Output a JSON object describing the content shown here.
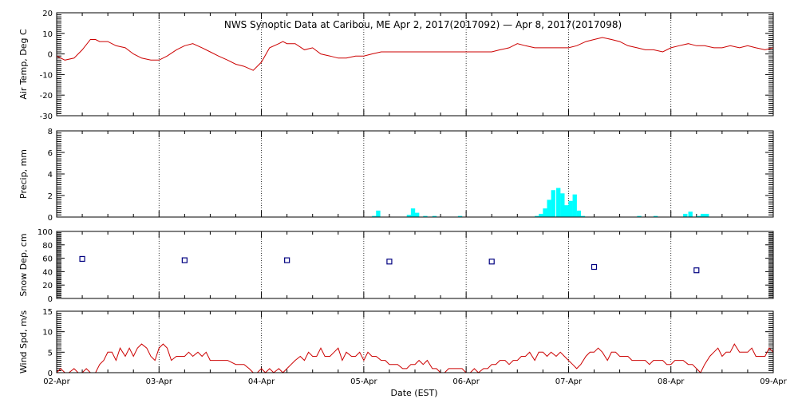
{
  "title": "NWS Synoptic Data at Caribou, ME   Apr  2, 2017(2017092) — Apr  8, 2017(2017098)",
  "xlabel": "Date (EST)",
  "x_ticks": [
    "02-Apr",
    "03-Apr",
    "04-Apr",
    "05-Apr",
    "06-Apr",
    "07-Apr",
    "08-Apr",
    "09-Apr"
  ],
  "x_range_days": [
    0,
    7
  ],
  "colors": {
    "temp": "#cc0000",
    "precip": "#00ffff",
    "snow": "#000080",
    "wind": "#cc0000",
    "grid": "#000000"
  },
  "chart_data": [
    {
      "type": "line",
      "ylabel": "Air Temp, Deg C",
      "ylim": [
        -30,
        20
      ],
      "y_ticks": [
        -30,
        -20,
        -10,
        0,
        10,
        20
      ],
      "grid": "vertical-dotted",
      "x_unit": "days since 02-Apr",
      "x": [
        0,
        0.08,
        0.17,
        0.25,
        0.33,
        0.38,
        0.42,
        0.5,
        0.58,
        0.67,
        0.75,
        0.83,
        0.92,
        1.0,
        1.08,
        1.17,
        1.25,
        1.33,
        1.42,
        1.5,
        1.58,
        1.67,
        1.75,
        1.83,
        1.92,
        2.0,
        2.08,
        2.17,
        2.21,
        2.25,
        2.33,
        2.42,
        2.5,
        2.58,
        2.67,
        2.75,
        2.83,
        2.92,
        3.0,
        3.08,
        3.17,
        3.25,
        3.33,
        3.5,
        3.75,
        4.0,
        4.25,
        4.33,
        4.42,
        4.5,
        4.58,
        4.67,
        4.75,
        4.83,
        4.92,
        5.0,
        5.08,
        5.17,
        5.25,
        5.33,
        5.42,
        5.5,
        5.58,
        5.67,
        5.75,
        5.83,
        5.92,
        6.0,
        6.08,
        6.17,
        6.25,
        6.33,
        6.42,
        6.5,
        6.58,
        6.67,
        6.75,
        6.83,
        6.92,
        7.0
      ],
      "y": [
        -1,
        -3,
        -2,
        2,
        7,
        7,
        6,
        6,
        4,
        3,
        0,
        -2,
        -3,
        -3,
        -1,
        2,
        4,
        5,
        3,
        1,
        -1,
        -3,
        -5,
        -6,
        -8,
        -4,
        3,
        5,
        6,
        5,
        5,
        2,
        3,
        0,
        -1,
        -2,
        -2,
        -1,
        -1,
        0,
        1,
        1,
        1,
        1,
        1,
        1,
        1,
        2,
        3,
        5,
        4,
        3,
        3,
        3,
        3,
        3,
        4,
        6,
        7,
        8,
        7,
        6,
        4,
        3,
        2,
        2,
        1,
        3,
        4,
        5,
        4,
        4,
        3,
        3,
        4,
        3,
        4,
        3,
        2,
        3
      ]
    },
    {
      "type": "bar",
      "ylabel": "Precip, mm",
      "ylim": [
        0,
        8
      ],
      "y_ticks": [
        0,
        2,
        4,
        6,
        8
      ],
      "grid": "vertical-dotted",
      "x_unit": "days since 02-Apr",
      "x": [
        3.08,
        3.12,
        3.42,
        3.46,
        3.5,
        3.58,
        3.67,
        3.92,
        4.67,
        4.71,
        4.75,
        4.79,
        4.83,
        4.88,
        4.92,
        4.96,
        5.0,
        5.04,
        5.08,
        5.12,
        5.67,
        5.83,
        6.12,
        6.17,
        6.25,
        6.29,
        6.33
      ],
      "values": [
        0.1,
        0.6,
        0.2,
        0.8,
        0.4,
        0.1,
        0.1,
        0.1,
        0.1,
        0.3,
        0.8,
        1.6,
        2.5,
        2.7,
        2.2,
        1.1,
        1.5,
        2.1,
        0.6,
        0.1,
        0.1,
        0.1,
        0.3,
        0.5,
        0.1,
        0.3,
        0.3
      ]
    },
    {
      "type": "scatter",
      "ylabel": "Snow Dep, cm",
      "ylim": [
        0,
        100
      ],
      "y_ticks": [
        0,
        20,
        40,
        60,
        80,
        100
      ],
      "grid": "vertical-dotted",
      "x_unit": "days since 02-Apr",
      "x": [
        0.25,
        1.25,
        2.25,
        3.25,
        4.25,
        5.25,
        6.25
      ],
      "y": [
        59,
        57,
        57,
        55,
        55,
        47,
        42
      ]
    },
    {
      "type": "line",
      "ylabel": "Wind Spd, m/s",
      "ylim": [
        0,
        15
      ],
      "y_ticks": [
        0,
        5,
        10,
        15
      ],
      "grid": "vertical-dotted",
      "x_unit": "days since 02-Apr",
      "x": [
        0,
        0.04,
        0.08,
        0.12,
        0.17,
        0.21,
        0.25,
        0.29,
        0.33,
        0.38,
        0.42,
        0.46,
        0.5,
        0.54,
        0.58,
        0.62,
        0.67,
        0.71,
        0.75,
        0.79,
        0.83,
        0.88,
        0.92,
        0.96,
        1.0,
        1.04,
        1.08,
        1.12,
        1.17,
        1.21,
        1.25,
        1.29,
        1.33,
        1.38,
        1.42,
        1.46,
        1.5,
        1.58,
        1.67,
        1.75,
        1.83,
        1.88,
        1.92,
        1.96,
        2.0,
        2.04,
        2.08,
        2.12,
        2.17,
        2.21,
        2.25,
        2.29,
        2.33,
        2.38,
        2.42,
        2.46,
        2.5,
        2.54,
        2.58,
        2.62,
        2.67,
        2.71,
        2.75,
        2.79,
        2.83,
        2.88,
        2.92,
        2.96,
        3.0,
        3.04,
        3.08,
        3.12,
        3.17,
        3.21,
        3.25,
        3.29,
        3.33,
        3.38,
        3.42,
        3.46,
        3.5,
        3.54,
        3.58,
        3.62,
        3.67,
        3.71,
        3.75,
        3.79,
        3.83,
        3.88,
        3.92,
        3.96,
        4.0,
        4.04,
        4.08,
        4.12,
        4.17,
        4.21,
        4.25,
        4.29,
        4.33,
        4.38,
        4.42,
        4.46,
        4.5,
        4.54,
        4.58,
        4.62,
        4.67,
        4.71,
        4.75,
        4.79,
        4.83,
        4.88,
        4.92,
        4.96,
        5.0,
        5.04,
        5.08,
        5.12,
        5.17,
        5.21,
        5.25,
        5.29,
        5.33,
        5.38,
        5.42,
        5.46,
        5.5,
        5.54,
        5.58,
        5.62,
        5.67,
        5.71,
        5.75,
        5.79,
        5.83,
        5.88,
        5.92,
        5.96,
        6.0,
        6.04,
        6.08,
        6.12,
        6.17,
        6.21,
        6.25,
        6.29,
        6.33,
        6.38,
        6.42,
        6.46,
        6.5,
        6.54,
        6.58,
        6.62,
        6.67,
        6.71,
        6.75,
        6.79,
        6.83,
        6.88,
        6.92,
        6.96,
        7.0
      ],
      "y": [
        0,
        1,
        0,
        0,
        1,
        0,
        0,
        1,
        0,
        0,
        2,
        3,
        5,
        5,
        3,
        6,
        4,
        6,
        4,
        6,
        7,
        6,
        4,
        3,
        6,
        7,
        6,
        3,
        4,
        4,
        4,
        5,
        4,
        5,
        4,
        5,
        3,
        3,
        3,
        2,
        2,
        1,
        0,
        0,
        1,
        0,
        1,
        0,
        1,
        0,
        1,
        2,
        3,
        4,
        3,
        5,
        4,
        4,
        6,
        4,
        4,
        5,
        6,
        3,
        5,
        4,
        4,
        5,
        3,
        5,
        4,
        4,
        3,
        3,
        2,
        2,
        2,
        1,
        1,
        2,
        2,
        3,
        2,
        3,
        1,
        1,
        0,
        0,
        1,
        1,
        1,
        1,
        0,
        0,
        1,
        0,
        1,
        1,
        2,
        2,
        3,
        3,
        2,
        3,
        3,
        4,
        4,
        5,
        3,
        5,
        5,
        4,
        5,
        4,
        5,
        4,
        3,
        2,
        1,
        2,
        4,
        5,
        5,
        6,
        5,
        3,
        5,
        5,
        4,
        4,
        4,
        3,
        3,
        3,
        3,
        2,
        3,
        3,
        3,
        2,
        2,
        3,
        3,
        3,
        2,
        2,
        1,
        0,
        2,
        4,
        5,
        6,
        4,
        5,
        5,
        7,
        5,
        5,
        5,
        6,
        4,
        4,
        4,
        6,
        5
      ]
    }
  ]
}
